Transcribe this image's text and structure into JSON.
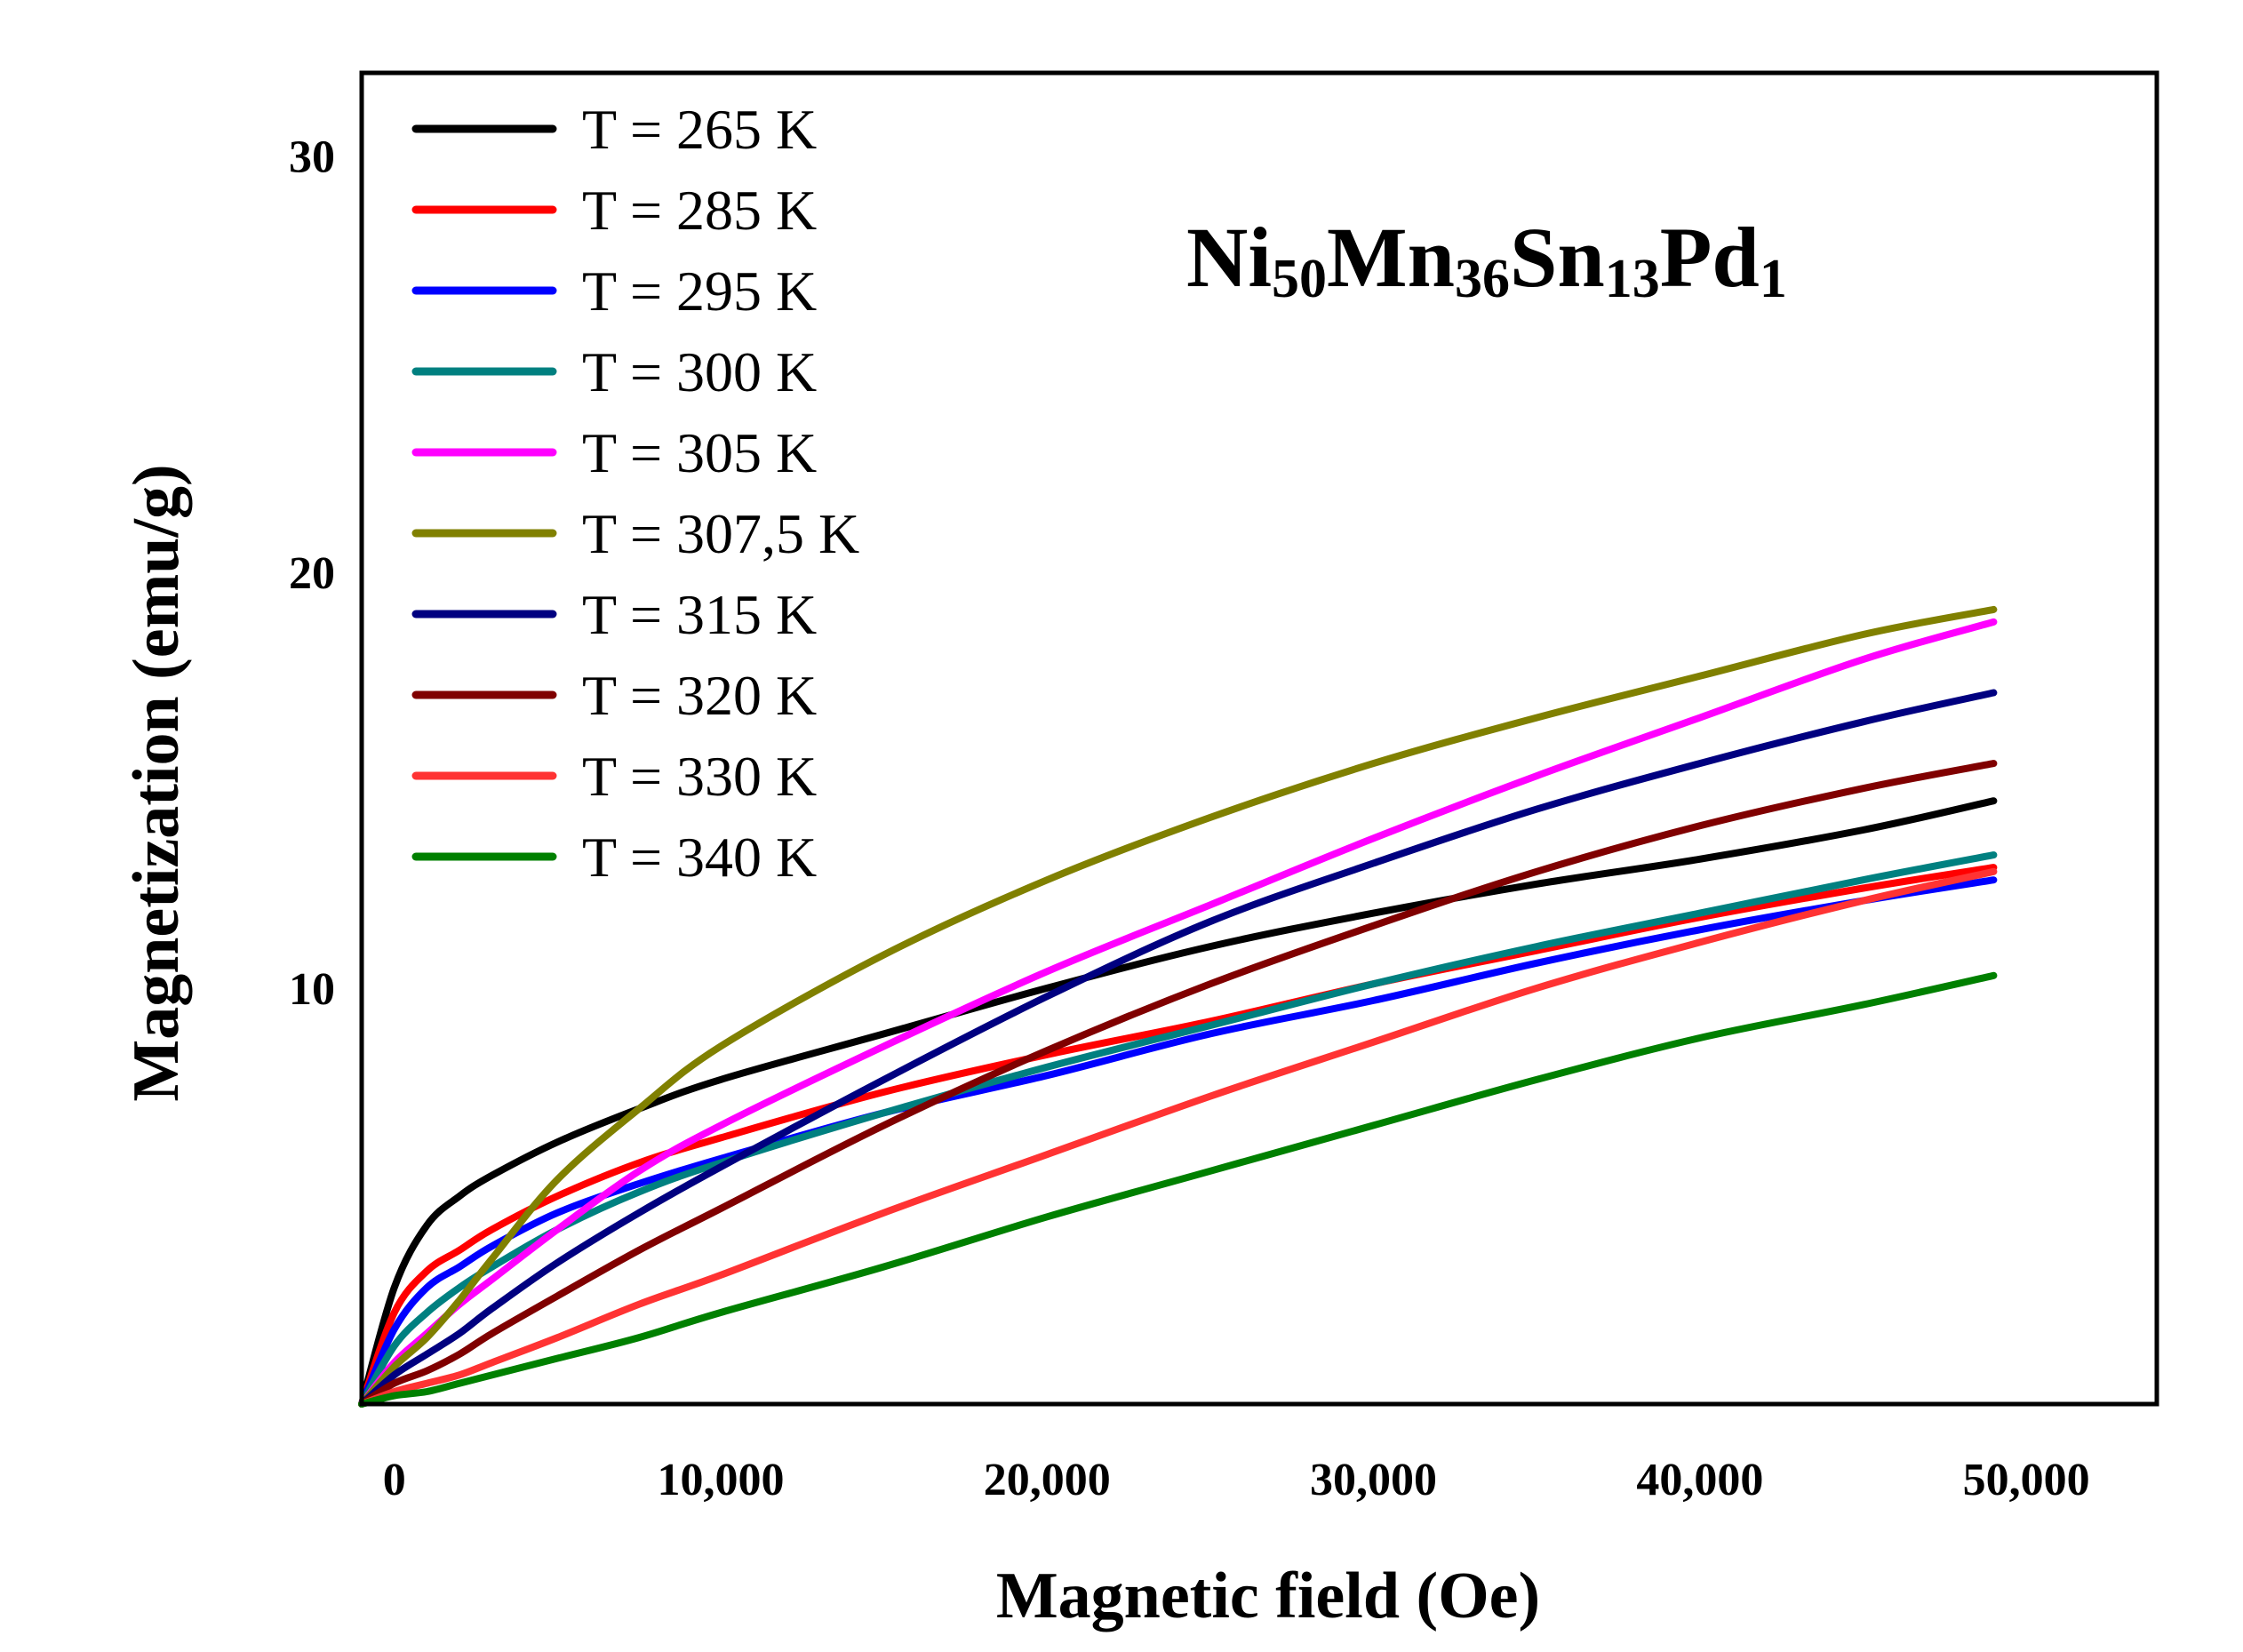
{
  "chart_data": {
    "type": "line",
    "xlabel": "Magnetic field (Oe)",
    "ylabel": "Magnetization (emu/g)",
    "xlim": [
      -1000,
      54000
    ],
    "ylim": [
      0,
      32
    ],
    "xticks": [
      0,
      10000,
      20000,
      30000,
      40000,
      50000
    ],
    "xtick_labels": [
      "0",
      "10,000",
      "20,000",
      "30,000",
      "40,000",
      "50,000"
    ],
    "yticks": [
      10,
      20,
      30
    ],
    "ytick_labels": [
      "10",
      "20",
      "30"
    ],
    "grid": false,
    "legend_position": "top-left",
    "annotation": {
      "parts": [
        {
          "text": "Ni",
          "sub": false
        },
        {
          "text": "50",
          "sub": true
        },
        {
          "text": "Mn",
          "sub": false
        },
        {
          "text": "36",
          "sub": true
        },
        {
          "text": "Sn",
          "sub": false
        },
        {
          "text": "13",
          "sub": true
        },
        {
          "text": "Pd",
          "sub": false
        },
        {
          "text": "1",
          "sub": true
        }
      ]
    },
    "x": [
      -1000,
      0,
      1000,
      2000,
      3000,
      5000,
      7500,
      10000,
      15000,
      20000,
      25000,
      30000,
      35000,
      40000,
      45000,
      49000
    ],
    "series": [
      {
        "name": "T = 265 K",
        "color": "#000000",
        "values": [
          0,
          2.8,
          4.3,
          5.0,
          5.5,
          6.3,
          7.1,
          7.8,
          8.9,
          10.0,
          11.0,
          11.8,
          12.5,
          13.1,
          13.8,
          14.5
        ]
      },
      {
        "name": "T = 285 K",
        "color": "#ff0000",
        "values": [
          0,
          2.2,
          3.2,
          3.7,
          4.2,
          5.0,
          5.8,
          6.4,
          7.5,
          8.4,
          9.2,
          10.1,
          10.9,
          11.7,
          12.4,
          12.9
        ]
      },
      {
        "name": "T = 295 K",
        "color": "#0000ff",
        "values": [
          0,
          1.8,
          2.8,
          3.3,
          3.8,
          4.6,
          5.3,
          5.9,
          7.0,
          7.9,
          8.9,
          9.7,
          10.6,
          11.4,
          12.1,
          12.6
        ]
      },
      {
        "name": "T = 300 K",
        "color": "#008080",
        "values": [
          0,
          1.4,
          2.2,
          2.8,
          3.3,
          4.2,
          5.1,
          5.8,
          7.0,
          8.1,
          9.1,
          10.1,
          11.0,
          11.8,
          12.6,
          13.2
        ]
      },
      {
        "name": "T = 305 K",
        "color": "#ff00ff",
        "values": [
          0,
          1.0,
          1.7,
          2.4,
          3.0,
          4.2,
          5.6,
          6.7,
          8.6,
          10.4,
          12.0,
          13.6,
          15.1,
          16.5,
          17.9,
          18.8
        ]
      },
      {
        "name": "T = 307,5 K",
        "color": "#808000",
        "values": [
          0,
          0.9,
          1.6,
          2.5,
          3.5,
          5.4,
          7.1,
          8.6,
          10.8,
          12.6,
          14.1,
          15.4,
          16.5,
          17.5,
          18.5,
          19.1
        ]
      },
      {
        "name": "T = 315 K",
        "color": "#000080",
        "values": [
          0,
          0.7,
          1.2,
          1.7,
          2.3,
          3.4,
          4.6,
          5.7,
          7.8,
          9.8,
          11.6,
          13.0,
          14.3,
          15.4,
          16.4,
          17.1
        ]
      },
      {
        "name": "T = 320 K",
        "color": "#800000",
        "values": [
          0,
          0.5,
          0.8,
          1.2,
          1.7,
          2.6,
          3.7,
          4.7,
          6.7,
          8.5,
          10.1,
          11.5,
          12.8,
          13.9,
          14.8,
          15.4
        ]
      },
      {
        "name": "T = 330 K",
        "color": "#ff3333",
        "values": [
          0,
          0.3,
          0.5,
          0.7,
          1.0,
          1.6,
          2.4,
          3.1,
          4.6,
          6.0,
          7.4,
          8.7,
          10.0,
          11.1,
          12.1,
          12.8
        ]
      },
      {
        "name": "T = 340 K",
        "color": "#008000",
        "values": [
          0,
          0.2,
          0.3,
          0.5,
          0.7,
          1.1,
          1.6,
          2.2,
          3.3,
          4.5,
          5.6,
          6.7,
          7.8,
          8.8,
          9.6,
          10.3
        ]
      }
    ]
  }
}
